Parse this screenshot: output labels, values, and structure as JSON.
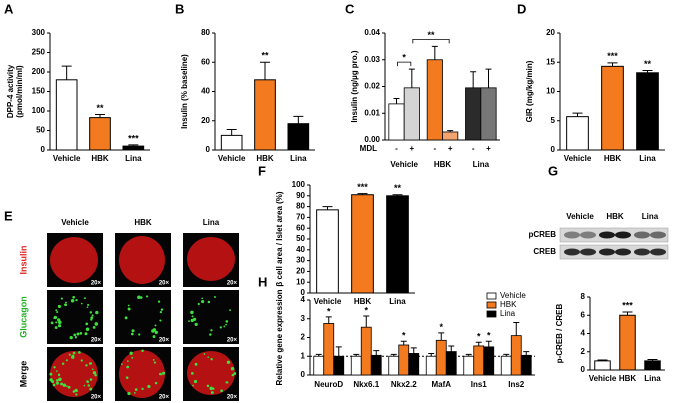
{
  "chart_data": [
    {
      "type": "bar",
      "panel": "A",
      "ylabel": [
        "DPP-4 activity",
        "(pmol/min/ml)"
      ],
      "categories": [
        "Vehicle",
        "HBK",
        "Lina"
      ],
      "values": [
        180,
        83,
        10
      ],
      "errors": [
        35,
        8,
        3
      ],
      "colors": [
        "#ffffff",
        "#f47a20",
        "#000000"
      ],
      "annotations": [
        null,
        "**",
        "***"
      ],
      "ylim": [
        0,
        300
      ],
      "yticks": [
        0,
        50,
        100,
        150,
        200,
        250,
        300
      ]
    },
    {
      "type": "bar",
      "panel": "B",
      "ylabel": [
        "Insulin (% baseline)"
      ],
      "categories": [
        "Vehicle",
        "HBK",
        "Lina"
      ],
      "values": [
        10,
        48,
        18
      ],
      "errors": [
        4,
        12,
        5
      ],
      "colors": [
        "#ffffff",
        "#f47a20",
        "#000000"
      ],
      "annotations": [
        null,
        "**",
        null
      ],
      "ylim": [
        0,
        80
      ],
      "yticks": [
        0,
        20,
        40,
        60,
        80
      ]
    },
    {
      "type": "grouped_bar",
      "panel": "C",
      "ylabel": [
        "Insulin (ng/µg pro.)"
      ],
      "xsublabel": "MDL",
      "categories": [
        "Vehicle",
        "HBK",
        "Lina"
      ],
      "series": [
        {
          "name": "-",
          "colors": [
            "#ffffff",
            "#f47a20",
            "#2b2b2b"
          ],
          "values": [
            0.0135,
            0.03,
            0.0195
          ],
          "errors": [
            0.002,
            0.005,
            0.006
          ]
        },
        {
          "name": "+",
          "colors": [
            "#d4d4d4",
            "#f3a46e",
            "#777777"
          ],
          "values": [
            0.0195,
            0.003,
            0.0195
          ],
          "errors": [
            0.007,
            0.0005,
            0.007
          ]
        }
      ],
      "brackets": [
        {
          "from": [
            0,
            0
          ],
          "to": [
            1,
            0
          ],
          "label": "*"
        },
        {
          "from": [
            1,
            0
          ],
          "to": [
            1,
            1
          ],
          "label": "**"
        }
      ],
      "ylim": [
        0,
        0.04
      ],
      "yticks": [
        {
          "value": 0,
          "label": "0.00"
        },
        0.01,
        0.02,
        0.03,
        0.04
      ]
    },
    {
      "type": "bar",
      "panel": "D",
      "ylabel": [
        "GIR (mg/kg/min)"
      ],
      "categories": [
        "Vehicle",
        "HBK",
        "Lina"
      ],
      "values": [
        5.7,
        14.3,
        13.2
      ],
      "errors": [
        0.6,
        0.6,
        0.4
      ],
      "colors": [
        "#ffffff",
        "#f47a20",
        "#000000"
      ],
      "annotations": [
        null,
        "***",
        "**"
      ],
      "ylim": [
        0,
        20
      ],
      "yticks": [
        0,
        5,
        10,
        15,
        20
      ]
    },
    {
      "type": "bar",
      "panel": "F",
      "ylabel": [
        "β cell area / Islet area (%)"
      ],
      "categories": [
        "Vehicle",
        "HBK",
        "Lina"
      ],
      "values": [
        77,
        91,
        90
      ],
      "errors": [
        3,
        1,
        1
      ],
      "colors": [
        "#ffffff",
        "#f47a20",
        "#000000"
      ],
      "annotations": [
        null,
        "***",
        "**"
      ],
      "ylim": [
        0,
        100
      ],
      "yticks": [
        0,
        10,
        20,
        30,
        40,
        50,
        60,
        70,
        80,
        90,
        100
      ]
    },
    {
      "type": "grouped_bar",
      "panel": "H",
      "ylabel": [
        "Relative gene expression"
      ],
      "legend": "top-right",
      "refline": 1,
      "categories": [
        "NeuroD",
        "Nkx6.1",
        "Nkx2.2",
        "MafA",
        "Ins1",
        "Ins2"
      ],
      "series": [
        {
          "name": "Vehicle",
          "color": "#ffffff",
          "values": [
            1,
            1,
            1,
            1,
            1,
            1
          ],
          "errors": [
            0.1,
            0.1,
            0.1,
            0.15,
            0.1,
            0.1
          ],
          "annotations": [
            null,
            null,
            null,
            null,
            null,
            null
          ]
        },
        {
          "name": "HBK",
          "color": "#f47a20",
          "values": [
            2.75,
            2.55,
            1.6,
            1.85,
            1.55,
            2.1
          ],
          "errors": [
            0.35,
            0.6,
            0.2,
            0.4,
            0.2,
            0.7
          ],
          "annotations": [
            "*",
            "*",
            "*",
            "*",
            "*",
            null
          ]
        },
        {
          "name": "Lina",
          "color": "#000000",
          "values": [
            1.0,
            1.05,
            1.15,
            1.25,
            1.5,
            1.05
          ],
          "errors": [
            0.5,
            0.25,
            0.3,
            0.3,
            0.3,
            0.2
          ],
          "annotations": [
            null,
            null,
            null,
            null,
            "*",
            null
          ]
        }
      ],
      "ylim": [
        0,
        4
      ],
      "yticks": [
        0,
        1,
        2,
        3,
        4
      ]
    },
    {
      "type": "bar",
      "ylabel": [
        "p-CREB / CREB"
      ],
      "categories": [
        "Vehicle",
        "HBK",
        "Lina"
      ],
      "values": [
        1.0,
        6.0,
        1.0
      ],
      "errors": [
        0.1,
        0.35,
        0.15
      ],
      "colors": [
        "#ffffff",
        "#f47a20",
        "#000000"
      ],
      "annotations": [
        null,
        "***",
        null
      ],
      "ylim": [
        0,
        8
      ],
      "yticks": [
        0,
        2,
        4,
        6,
        8
      ]
    }
  ],
  "image_panel": {
    "panel": "E",
    "columns": [
      "Vehicle",
      "HBK",
      "Lina"
    ],
    "rows": [
      "Insulin",
      "Glucagon",
      "Merge"
    ],
    "row_colors": [
      "#e02020",
      "#20b020",
      "#000000"
    ],
    "magnification": "20×"
  },
  "blot": {
    "panel": "G",
    "lanes": [
      "Vehicle",
      "HBK",
      "Lina"
    ],
    "bands": [
      "pCREB",
      "CREB"
    ]
  }
}
